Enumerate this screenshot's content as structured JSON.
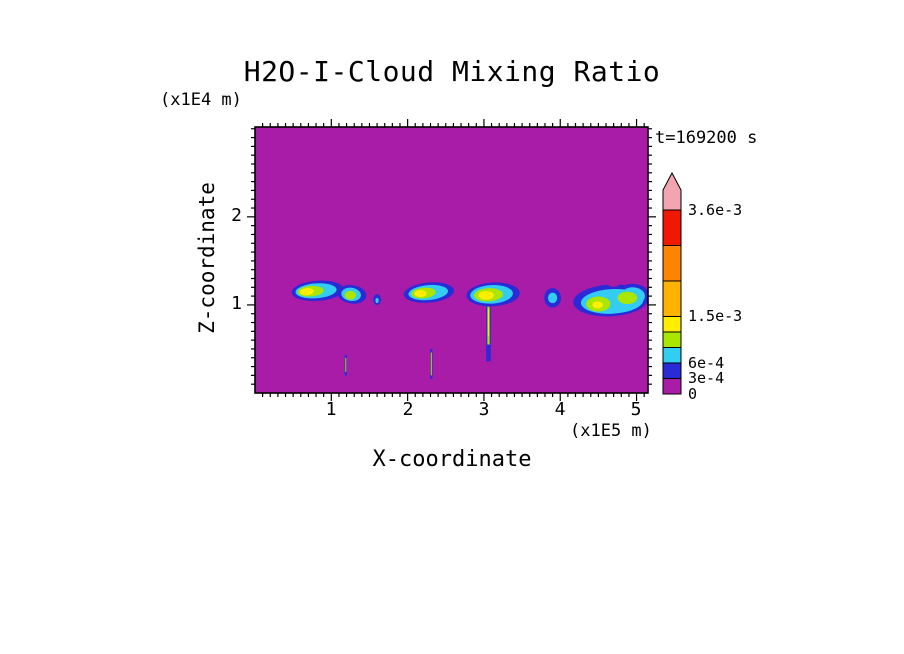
{
  "page": {
    "background_color": "#FFFFFF"
  },
  "chart_data": {
    "type": "heatmap",
    "title": "H2O-I-Cloud Mixing Ratio",
    "time_annotation": "t=169200 s",
    "xlabel": "X-coordinate",
    "x_unit": "(x1E5 m)",
    "ylabel": "Z-coordinate",
    "y_unit": "(x1E4 m)",
    "xlim": [
      0,
      5.15
    ],
    "ylim": [
      0,
      3.02
    ],
    "x_ticks": [
      {
        "value": 1,
        "label": "1"
      },
      {
        "value": 2,
        "label": "2"
      },
      {
        "value": 3,
        "label": "3"
      },
      {
        "value": 4,
        "label": "4"
      },
      {
        "value": 5,
        "label": "5"
      }
    ],
    "y_ticks": [
      {
        "value": 1,
        "label": "1"
      },
      {
        "value": 2,
        "label": "2"
      }
    ],
    "minor_tick_step": 0.1,
    "grid": false,
    "background_value": 0,
    "background_color": "#A81CA8",
    "colorbar": {
      "position": "right",
      "levels": [
        0,
        0.0003,
        0.0006,
        0.0009,
        0.0012,
        0.0015,
        0.0022,
        0.0029,
        0.0036
      ],
      "colors": [
        "#A81CA8",
        "#2A2AD6",
        "#33CCF2",
        "#AAE600",
        "#FFEE00",
        "#FFB300",
        "#FF8400",
        "#F01800"
      ],
      "over_color": "#F2A4B0",
      "labels": [
        {
          "text": "3.6e-3",
          "level": 0.0036
        },
        {
          "text": "1.5e-3",
          "level": 0.0015
        },
        {
          "text": "6e-4",
          "level": 0.0006
        },
        {
          "text": "3e-4",
          "level": 0.0003
        },
        {
          "text": "0",
          "level": 0
        }
      ]
    },
    "clouds": [
      {
        "name": "cloud-a-west",
        "shapes": [
          {
            "type": "ellipse",
            "level": 0.0003,
            "color": "#2A2AD6",
            "cx": 0.82,
            "cz": 1.16,
            "rx": 0.34,
            "rz": 0.115,
            "rot": -4
          },
          {
            "type": "ellipse",
            "level": 0.0006,
            "color": "#33CCF2",
            "cx": 0.8,
            "cz": 1.16,
            "rx": 0.27,
            "rz": 0.085,
            "rot": -4
          },
          {
            "type": "ellipse",
            "level": 0.0009,
            "color": "#AAE600",
            "cx": 0.73,
            "cz": 1.155,
            "rx": 0.17,
            "rz": 0.06,
            "rot": -4
          },
          {
            "type": "ellipse",
            "level": 0.0012,
            "color": "#FFEE00",
            "cx": 0.68,
            "cz": 1.15,
            "rx": 0.09,
            "rz": 0.04,
            "rot": -4
          }
        ]
      },
      {
        "name": "cloud-a-east",
        "shapes": [
          {
            "type": "ellipse",
            "level": 0.0003,
            "color": "#2A2AD6",
            "cx": 1.27,
            "cz": 1.12,
            "rx": 0.19,
            "rz": 0.105,
            "rot": 8
          },
          {
            "type": "ellipse",
            "level": 0.0006,
            "color": "#33CCF2",
            "cx": 1.26,
            "cz": 1.12,
            "rx": 0.13,
            "rz": 0.075,
            "rot": 8
          },
          {
            "type": "ellipse",
            "level": 0.0009,
            "color": "#AAE600",
            "cx": 1.25,
            "cz": 1.11,
            "rx": 0.075,
            "rz": 0.05,
            "rot": 0
          }
        ]
      },
      {
        "name": "speck-a",
        "shapes": [
          {
            "type": "ellipse",
            "level": 0.0003,
            "color": "#2A2AD6",
            "cx": 1.6,
            "cz": 1.06,
            "rx": 0.05,
            "rz": 0.062,
            "rot": 0
          },
          {
            "type": "ellipse",
            "level": 0.0006,
            "color": "#33CCF2",
            "cx": 1.6,
            "cz": 1.05,
            "rx": 0.022,
            "rz": 0.03,
            "rot": 0
          }
        ]
      },
      {
        "name": "cloud-b",
        "shapes": [
          {
            "type": "ellipse",
            "level": 0.0003,
            "color": "#2A2AD6",
            "cx": 2.28,
            "cz": 1.14,
            "rx": 0.33,
            "rz": 0.115,
            "rot": -5
          },
          {
            "type": "ellipse",
            "level": 0.0006,
            "color": "#33CCF2",
            "cx": 2.27,
            "cz": 1.14,
            "rx": 0.26,
            "rz": 0.085,
            "rot": -5
          },
          {
            "type": "ellipse",
            "level": 0.0009,
            "color": "#AAE600",
            "cx": 2.21,
            "cz": 1.135,
            "rx": 0.16,
            "rz": 0.06,
            "rot": -5
          },
          {
            "type": "ellipse",
            "level": 0.0012,
            "color": "#FFEE00",
            "cx": 2.17,
            "cz": 1.13,
            "rx": 0.08,
            "rz": 0.04,
            "rot": 0
          }
        ]
      },
      {
        "name": "cloud-c",
        "shapes": [
          {
            "type": "rect",
            "level": 0.0003,
            "color": "#2A2AD6",
            "x": 3.06,
            "w": 0.06,
            "z_top": 1.02,
            "z_bottom": 0.36
          },
          {
            "type": "rect",
            "level": 0.0009,
            "color": "#AAE600",
            "x": 3.06,
            "w": 0.03,
            "z_top": 0.98,
            "z_bottom": 0.55
          },
          {
            "type": "rect",
            "level": 0.0012,
            "color": "#FFEE00",
            "x": 3.06,
            "w": 0.014,
            "z_top": 0.95,
            "z_bottom": 0.65
          },
          {
            "type": "ellipse",
            "level": 0.0003,
            "color": "#2A2AD6",
            "cx": 3.12,
            "cz": 1.12,
            "rx": 0.35,
            "rz": 0.135,
            "rot": -3
          },
          {
            "type": "ellipse",
            "level": 0.0006,
            "color": "#33CCF2",
            "cx": 3.1,
            "cz": 1.12,
            "rx": 0.28,
            "rz": 0.105,
            "rot": -3
          },
          {
            "type": "ellipse",
            "level": 0.0009,
            "color": "#AAE600",
            "cx": 3.06,
            "cz": 1.115,
            "rx": 0.19,
            "rz": 0.075,
            "rot": -3
          },
          {
            "type": "ellipse",
            "level": 0.0012,
            "color": "#FFEE00",
            "cx": 3.03,
            "cz": 1.11,
            "rx": 0.1,
            "rz": 0.05,
            "rot": 0
          }
        ]
      },
      {
        "name": "cloud-d",
        "shapes": [
          {
            "type": "ellipse",
            "level": 0.0003,
            "color": "#2A2AD6",
            "cx": 3.9,
            "cz": 1.08,
            "rx": 0.11,
            "rz": 0.11,
            "rot": 0
          },
          {
            "type": "ellipse",
            "level": 0.0006,
            "color": "#33CCF2",
            "cx": 3.9,
            "cz": 1.08,
            "rx": 0.06,
            "rz": 0.06,
            "rot": 0
          }
        ]
      },
      {
        "name": "cloud-e",
        "shapes": [
          {
            "type": "ellipse",
            "level": 0.0003,
            "color": "#2A2AD6",
            "cx": 4.66,
            "cz": 1.05,
            "rx": 0.49,
            "rz": 0.18,
            "rot": -3
          },
          {
            "type": "ellipse",
            "level": 0.0003,
            "color": "#2A2AD6",
            "cx": 4.95,
            "cz": 1.1,
            "rx": 0.22,
            "rz": 0.14,
            "rot": 0
          },
          {
            "type": "ellipse",
            "level": 0.0006,
            "color": "#33CCF2",
            "cx": 4.68,
            "cz": 1.04,
            "rx": 0.41,
            "rz": 0.14,
            "rot": -3
          },
          {
            "type": "ellipse",
            "level": 0.0006,
            "color": "#33CCF2",
            "cx": 4.95,
            "cz": 1.1,
            "rx": 0.16,
            "rz": 0.1,
            "rot": 0
          },
          {
            "type": "ellipse",
            "level": 0.0009,
            "color": "#AAE600",
            "cx": 4.5,
            "cz": 1.01,
            "rx": 0.16,
            "rz": 0.085,
            "rot": 0
          },
          {
            "type": "ellipse",
            "level": 0.0009,
            "color": "#AAE600",
            "cx": 4.88,
            "cz": 1.08,
            "rx": 0.13,
            "rz": 0.07,
            "rot": 0
          },
          {
            "type": "ellipse",
            "level": 0.0012,
            "color": "#FFEE00",
            "cx": 4.49,
            "cz": 1.0,
            "rx": 0.07,
            "rz": 0.04,
            "rot": 0
          },
          {
            "type": "ellipse",
            "level": 0,
            "color": "#A81CA8",
            "cx": 4.7,
            "cz": 1.26,
            "rx": 0.09,
            "rz": 0.055,
            "rot": 0
          }
        ]
      },
      {
        "name": "streak-west",
        "shapes": [
          {
            "type": "rect",
            "level": 0.0003,
            "color": "#2A2AD6",
            "x": 1.19,
            "w": 0.03,
            "z_top": 0.43,
            "z_bottom": 0.2
          },
          {
            "type": "rect",
            "level": 0.0009,
            "color": "#AAE600",
            "x": 1.19,
            "w": 0.013,
            "z_top": 0.4,
            "z_bottom": 0.24
          }
        ]
      },
      {
        "name": "streak-mid",
        "shapes": [
          {
            "type": "rect",
            "level": 0.0003,
            "color": "#2A2AD6",
            "x": 2.31,
            "w": 0.03,
            "z_top": 0.5,
            "z_bottom": 0.16
          },
          {
            "type": "rect",
            "level": 0.0009,
            "color": "#AAE600",
            "x": 2.31,
            "w": 0.014,
            "z_top": 0.46,
            "z_bottom": 0.2
          }
        ]
      }
    ]
  }
}
